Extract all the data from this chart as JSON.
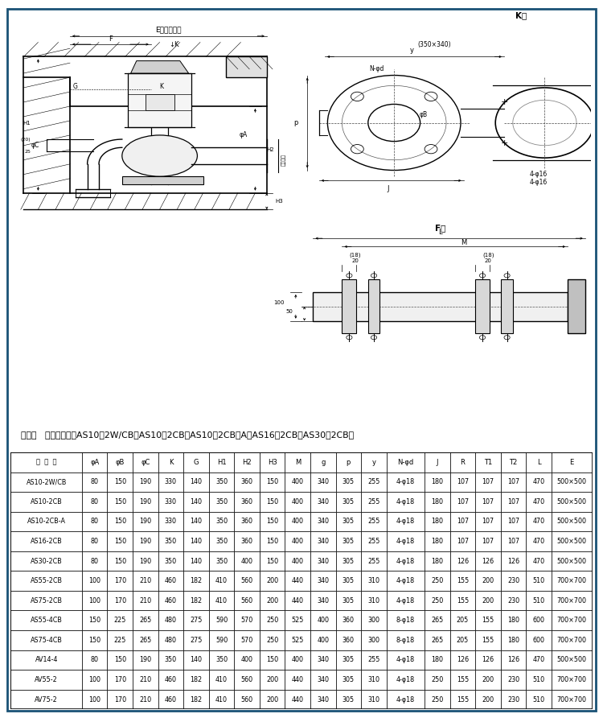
{
  "note": "注：（   ）内尺寸适用AS10－2W/CB、AS10－2CB、AS10－2CB－A、AS16－2CB、AS30－2CB。",
  "headers": [
    "泵  型  号",
    "φA",
    "φB",
    "φC",
    "K",
    "G",
    "H1",
    "H2",
    "H3",
    "M",
    "g",
    "p",
    "y",
    "N-φd",
    "J",
    "R",
    "T1",
    "T2",
    "L",
    "E"
  ],
  "rows": [
    [
      "AS10-2W/CB",
      "80",
      "150",
      "190",
      "330",
      "140",
      "350",
      "360",
      "150",
      "400",
      "340",
      "305",
      "255",
      "4-φ18",
      "180",
      "107",
      "107",
      "107",
      "470",
      "500×500"
    ],
    [
      "AS10-2CB",
      "80",
      "150",
      "190",
      "330",
      "140",
      "350",
      "360",
      "150",
      "400",
      "340",
      "305",
      "255",
      "4-φ18",
      "180",
      "107",
      "107",
      "107",
      "470",
      "500×500"
    ],
    [
      "AS10-2CB-A",
      "80",
      "150",
      "190",
      "330",
      "140",
      "350",
      "360",
      "150",
      "400",
      "340",
      "305",
      "255",
      "4-φ18",
      "180",
      "107",
      "107",
      "107",
      "470",
      "500×500"
    ],
    [
      "AS16-2CB",
      "80",
      "150",
      "190",
      "350",
      "140",
      "350",
      "360",
      "150",
      "400",
      "340",
      "305",
      "255",
      "4-φ18",
      "180",
      "107",
      "107",
      "107",
      "470",
      "500×500"
    ],
    [
      "AS30-2CB",
      "80",
      "150",
      "190",
      "350",
      "140",
      "350",
      "400",
      "150",
      "400",
      "340",
      "305",
      "255",
      "4-φ18",
      "180",
      "126",
      "126",
      "126",
      "470",
      "500×500"
    ],
    [
      "AS55-2CB",
      "100",
      "170",
      "210",
      "460",
      "182",
      "410",
      "560",
      "200",
      "440",
      "340",
      "305",
      "310",
      "4-φ18",
      "250",
      "155",
      "200",
      "230",
      "510",
      "700×700"
    ],
    [
      "AS75-2CB",
      "100",
      "170",
      "210",
      "460",
      "182",
      "410",
      "560",
      "200",
      "440",
      "340",
      "305",
      "310",
      "4-φ18",
      "250",
      "155",
      "200",
      "230",
      "510",
      "700×700"
    ],
    [
      "AS55-4CB",
      "150",
      "225",
      "265",
      "480",
      "275",
      "590",
      "570",
      "250",
      "525",
      "400",
      "360",
      "300",
      "8-φ18",
      "265",
      "205",
      "155",
      "180",
      "600",
      "700×700"
    ],
    [
      "AS75-4CB",
      "150",
      "225",
      "265",
      "480",
      "275",
      "590",
      "570",
      "250",
      "525",
      "400",
      "360",
      "300",
      "8-φ18",
      "265",
      "205",
      "155",
      "180",
      "600",
      "700×700"
    ],
    [
      "AV14-4",
      "80",
      "150",
      "190",
      "350",
      "140",
      "350",
      "400",
      "150",
      "400",
      "340",
      "305",
      "255",
      "4-φ18",
      "180",
      "126",
      "126",
      "126",
      "470",
      "500×500"
    ],
    [
      "AV55-2",
      "100",
      "170",
      "210",
      "460",
      "182",
      "410",
      "560",
      "200",
      "440",
      "340",
      "305",
      "310",
      "4-φ18",
      "250",
      "155",
      "200",
      "230",
      "510",
      "700×700"
    ],
    [
      "AV75-2",
      "100",
      "170",
      "210",
      "460",
      "182",
      "410",
      "560",
      "200",
      "440",
      "340",
      "305",
      "310",
      "4-φ18",
      "250",
      "155",
      "200",
      "230",
      "510",
      "700×700"
    ]
  ],
  "col_widths": [
    2.8,
    1.0,
    1.0,
    1.0,
    1.0,
    1.0,
    1.0,
    1.0,
    1.0,
    1.0,
    1.0,
    1.0,
    1.0,
    1.5,
    1.0,
    1.0,
    1.0,
    1.0,
    1.0,
    1.6
  ],
  "border_color": "#1a5276"
}
